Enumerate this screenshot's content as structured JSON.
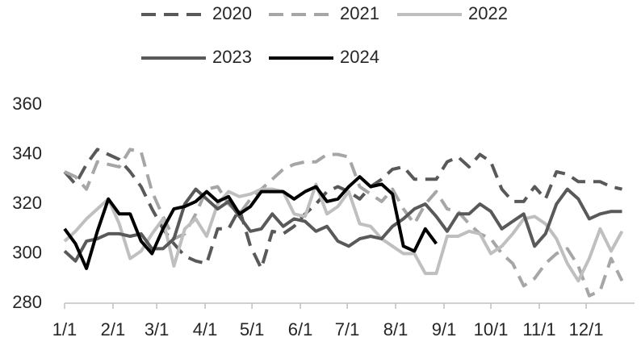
{
  "chart_data": {
    "type": "line",
    "x": [
      0,
      7,
      14,
      21,
      28,
      35,
      42,
      49,
      56,
      63,
      70,
      77,
      84,
      91,
      98,
      105,
      112,
      119,
      126,
      133,
      140,
      147,
      154,
      161,
      168,
      175,
      182,
      189,
      196,
      203,
      210,
      217,
      224,
      231,
      238,
      245,
      252,
      259,
      266,
      273,
      280,
      287,
      294,
      301,
      308,
      315,
      322,
      329,
      336,
      343,
      350,
      357
    ],
    "xlim": [
      0,
      365
    ],
    "xticks": [
      {
        "value": 0,
        "label": "1/1"
      },
      {
        "value": 31,
        "label": "2/1"
      },
      {
        "value": 59,
        "label": "3/1"
      },
      {
        "value": 90,
        "label": "4/1"
      },
      {
        "value": 120,
        "label": "5/1"
      },
      {
        "value": 151,
        "label": "6/1"
      },
      {
        "value": 181,
        "label": "7/1"
      },
      {
        "value": 212,
        "label": "8/1"
      },
      {
        "value": 243,
        "label": "9/1"
      },
      {
        "value": 273,
        "label": "10/1"
      },
      {
        "value": 304,
        "label": "11/1"
      },
      {
        "value": 334,
        "label": "12/1"
      }
    ],
    "ylim": [
      280,
      360
    ],
    "yticks": [
      280,
      300,
      320,
      340,
      360
    ],
    "grid": false,
    "legend": "top",
    "series": [
      {
        "name": "2020",
        "color": "#595959",
        "dashed": true,
        "values": [
          333,
          328,
          336,
          342,
          340,
          338,
          333,
          327,
          318,
          310,
          304,
          299,
          297,
          296,
          310,
          310,
          318,
          303,
          294,
          309,
          308,
          311,
          316,
          320,
          325,
          327,
          325,
          322,
          327,
          330,
          334,
          335,
          330,
          330,
          330,
          337,
          339,
          335,
          340,
          337,
          326,
          321,
          321,
          327,
          322,
          333,
          332,
          329,
          329,
          329,
          327,
          326
        ]
      },
      {
        "name": "2021",
        "color": "#a6a6a6",
        "dashed": true,
        "values": [
          333,
          331,
          326,
          337,
          336,
          335,
          342,
          341,
          325,
          315,
          306,
          308,
          316,
          326,
          327,
          320,
          316,
          322,
          326,
          330,
          334,
          336,
          337,
          337,
          340,
          340,
          339,
          327,
          324,
          321,
          326,
          318,
          312,
          320,
          325,
          318,
          317,
          312,
          308,
          306,
          300,
          296,
          287,
          290,
          296,
          300,
          302,
          295,
          283,
          285,
          298,
          289
        ]
      },
      {
        "name": "2022",
        "color": "#bfbfbf",
        "dashed": false,
        "values": [
          305,
          309,
          314,
          318,
          322,
          312,
          298,
          301,
          308,
          314,
          295,
          310,
          314,
          307,
          320,
          325,
          323,
          324,
          326,
          326,
          325,
          316,
          315,
          328,
          316,
          319,
          325,
          312,
          311,
          306,
          303,
          300,
          300,
          292,
          292,
          307,
          307,
          309,
          308,
          300,
          303,
          308,
          314,
          315,
          312,
          306,
          296,
          289,
          298,
          310,
          301,
          309
        ]
      },
      {
        "name": "2023",
        "color": "#595959",
        "dashed": false,
        "values": [
          301,
          297,
          305,
          306,
          308,
          308,
          307,
          308,
          302,
          302,
          306,
          320,
          326,
          322,
          318,
          321,
          315,
          309,
          310,
          316,
          311,
          314,
          313,
          309,
          311,
          305,
          303,
          306,
          307,
          306,
          311,
          314,
          318,
          320,
          315,
          309,
          316,
          316,
          320,
          317,
          310,
          313,
          316,
          303,
          308,
          320,
          326,
          322,
          314,
          316,
          317,
          317
        ]
      },
      {
        "name": "2024",
        "color": "#000000",
        "dashed": false,
        "values": [
          310,
          304,
          294,
          309,
          322,
          316,
          316,
          305,
          300,
          310,
          318,
          319,
          321,
          325,
          321,
          323,
          316,
          319,
          325,
          325,
          325,
          322,
          325,
          327,
          321,
          322,
          327,
          331,
          327,
          328,
          324,
          303,
          301,
          310,
          304,
          null,
          null,
          null,
          null,
          null,
          null,
          null,
          null,
          null,
          null,
          null,
          null,
          null,
          null,
          null,
          null,
          null
        ]
      }
    ]
  }
}
